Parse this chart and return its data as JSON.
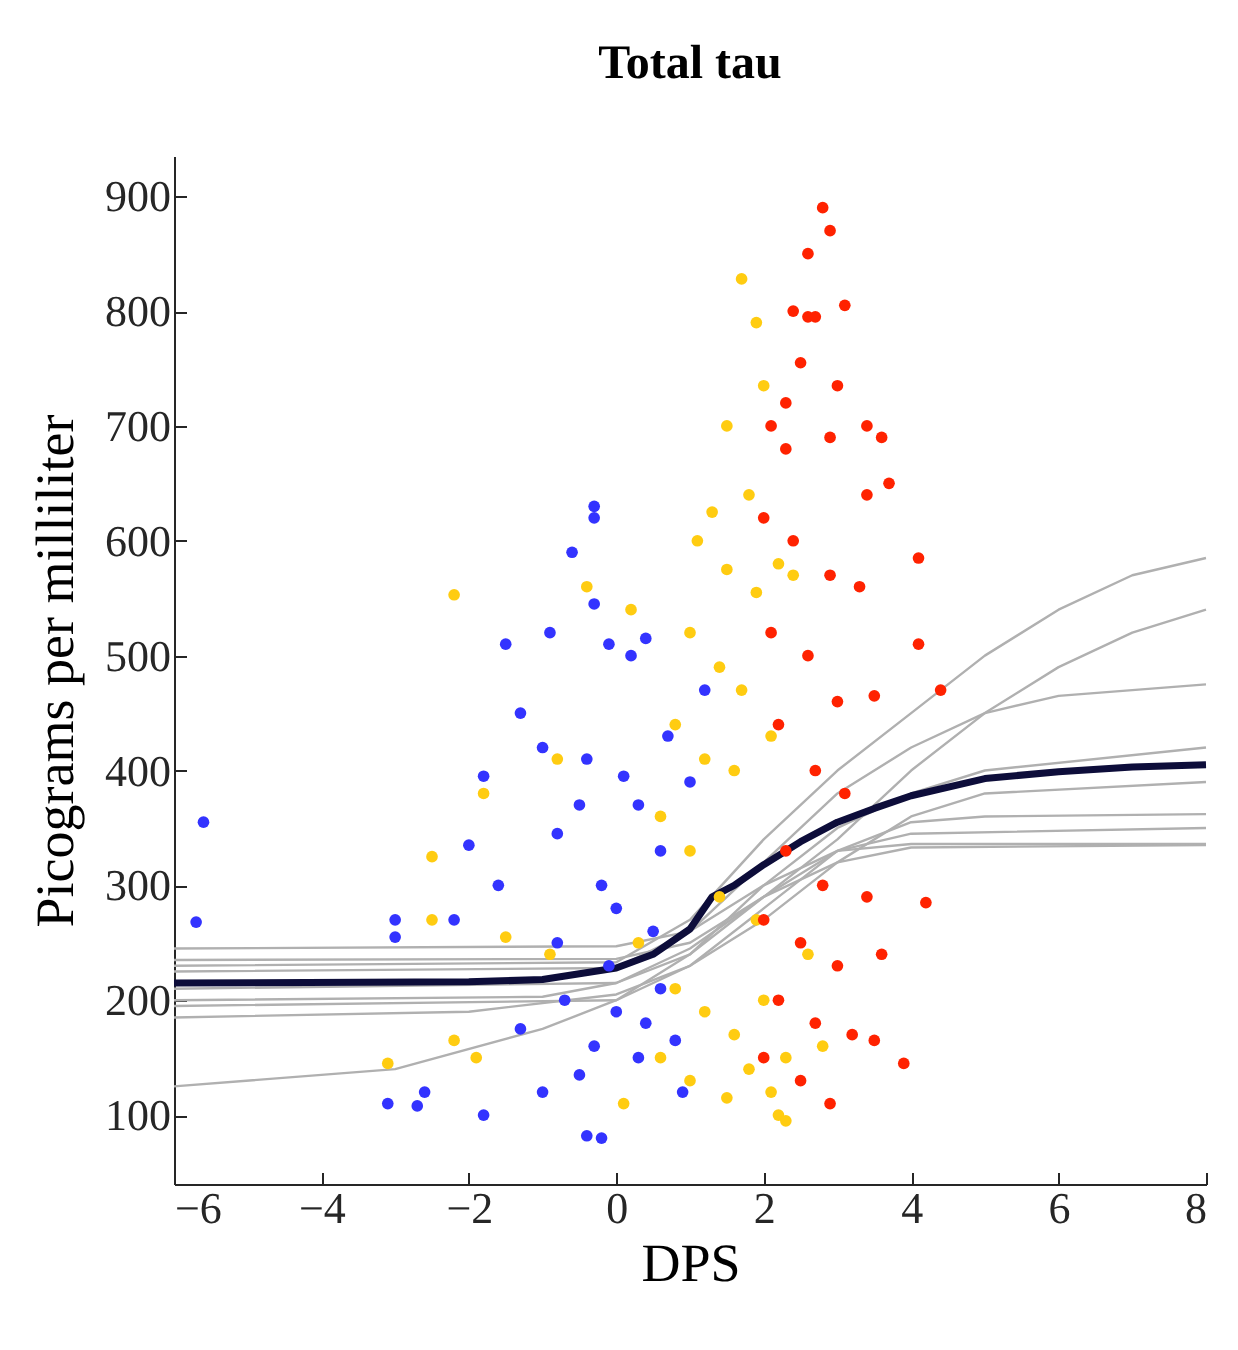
{
  "chart_data": {
    "type": "scatter",
    "title": "Total tau",
    "xlabel": "DPS",
    "ylabel": "Picograms per milliliter",
    "xlim": [
      -6,
      8
    ],
    "xticks": [
      -6,
      -4,
      -2,
      0,
      2,
      4,
      6,
      8
    ],
    "ylim": [
      40,
      935
    ],
    "yticks": [
      100,
      200,
      300,
      400,
      500,
      600,
      700,
      800,
      900
    ],
    "series": [
      {
        "marker": "circle",
        "color": "#3333ff",
        "x": [
          -5.6,
          -5.7,
          -3.0,
          -3.0,
          -2.6,
          -2.7,
          -3.1,
          -2.0,
          -1.5,
          -1.3,
          -1.8,
          -0.9,
          -0.6,
          -0.3,
          -0.3,
          -0.3,
          -0.1,
          0.2,
          0.4,
          -1.0,
          -0.4,
          0.1,
          -0.5,
          0.3,
          -1.6,
          -2.2,
          -0.8,
          0.6,
          -0.2,
          0.0,
          0.5,
          -0.8,
          -1.3,
          -0.7,
          -0.3,
          0.0,
          0.3,
          -0.5,
          0.6,
          -1.0,
          -0.4,
          -0.2,
          0.8,
          0.9,
          -1.8,
          0.7,
          1.2,
          1.0,
          -0.1,
          0.4
        ],
        "values": [
          355,
          268,
          270,
          255,
          120,
          108,
          110,
          335,
          510,
          450,
          395,
          520,
          590,
          630,
          620,
          545,
          510,
          500,
          515,
          420,
          410,
          395,
          370,
          370,
          300,
          270,
          345,
          330,
          300,
          280,
          260,
          250,
          175,
          200,
          160,
          190,
          150,
          135,
          210,
          120,
          82,
          80,
          165,
          120,
          100,
          430,
          470,
          390,
          230,
          180
        ]
      },
      {
        "marker": "circle",
        "color": "#ffcc11",
        "x": [
          -2.2,
          -1.8,
          -2.5,
          -2.5,
          -3.1,
          -2.2,
          -1.9,
          -0.8,
          -0.4,
          0.2,
          1.7,
          1.9,
          2.0,
          1.5,
          1.8,
          1.3,
          1.1,
          1.5,
          1.9,
          1.0,
          1.4,
          1.7,
          2.2,
          2.4,
          0.8,
          1.2,
          1.6,
          2.1,
          0.6,
          1.0,
          1.4,
          1.9,
          0.3,
          0.8,
          1.2,
          1.6,
          2.0,
          2.3,
          0.6,
          1.0,
          1.5,
          2.1,
          2.2,
          2.3,
          1.8,
          0.1,
          -0.9,
          -1.5,
          2.6,
          2.8
        ],
        "values": [
          553,
          380,
          325,
          270,
          145,
          165,
          150,
          410,
          560,
          540,
          828,
          790,
          735,
          700,
          640,
          625,
          600,
          575,
          555,
          520,
          490,
          470,
          580,
          570,
          440,
          410,
          400,
          430,
          360,
          330,
          290,
          270,
          250,
          210,
          190,
          170,
          200,
          150,
          150,
          130,
          115,
          120,
          100,
          95,
          140,
          110,
          240,
          255,
          240,
          160
        ]
      },
      {
        "marker": "circle",
        "color": "#ff2200",
        "x": [
          2.8,
          2.9,
          2.6,
          2.4,
          3.1,
          2.6,
          2.7,
          2.5,
          3.0,
          2.1,
          2.3,
          3.4,
          3.6,
          2.9,
          2.3,
          4.1,
          4.1,
          3.4,
          3.7,
          2.0,
          2.4,
          2.9,
          3.3,
          2.1,
          2.6,
          3.0,
          3.5,
          2.2,
          2.7,
          3.1,
          2.3,
          2.8,
          3.4,
          2.0,
          2.5,
          3.0,
          3.6,
          2.2,
          2.7,
          3.2,
          2.0,
          2.5,
          3.9,
          3.5,
          2.9,
          4.2,
          4.4
        ],
        "values": [
          890,
          870,
          850,
          800,
          805,
          795,
          795,
          755,
          735,
          700,
          720,
          700,
          690,
          690,
          680,
          585,
          510,
          640,
          650,
          620,
          600,
          570,
          560,
          520,
          500,
          460,
          465,
          440,
          400,
          380,
          330,
          300,
          290,
          270,
          250,
          230,
          240,
          200,
          180,
          170,
          150,
          130,
          145,
          165,
          110,
          285,
          470
        ]
      },
      {
        "type": "line",
        "color": "#b0b0b0",
        "x": [
          -6,
          0,
          1,
          2,
          3,
          4,
          8
        ],
        "values": [
          245,
          247,
          260,
          300,
          330,
          336,
          336
        ]
      },
      {
        "type": "line",
        "color": "#b0b0b0",
        "x": [
          -6,
          -1,
          0,
          1,
          2,
          3,
          4,
          8
        ],
        "values": [
          200,
          203,
          215,
          245,
          290,
          320,
          333,
          335
        ]
      },
      {
        "type": "line",
        "color": "#b0b0b0",
        "x": [
          -6,
          -3,
          -1,
          0,
          1,
          2,
          3,
          4,
          8
        ],
        "values": [
          125,
          140,
          175,
          200,
          240,
          290,
          330,
          345,
          350
        ]
      },
      {
        "type": "line",
        "color": "#b0b0b0",
        "x": [
          -6,
          0,
          1,
          2,
          3,
          4,
          5,
          6,
          7,
          8
        ],
        "values": [
          230,
          233,
          270,
          340,
          400,
          450,
          500,
          540,
          570,
          585
        ]
      },
      {
        "type": "line",
        "color": "#b0b0b0",
        "x": [
          -6,
          0,
          1,
          2,
          3,
          4,
          5,
          6,
          8
        ],
        "values": [
          225,
          228,
          260,
          320,
          380,
          420,
          450,
          465,
          475
        ]
      },
      {
        "type": "line",
        "color": "#b0b0b0",
        "x": [
          -6,
          0,
          1,
          2,
          3,
          4,
          5,
          8
        ],
        "values": [
          210,
          215,
          240,
          300,
          350,
          380,
          400,
          420
        ]
      },
      {
        "type": "line",
        "color": "#b0b0b0",
        "x": [
          -6,
          -2,
          0,
          1,
          2,
          3,
          4,
          5,
          8
        ],
        "values": [
          185,
          190,
          205,
          230,
          270,
          320,
          360,
          380,
          390
        ]
      },
      {
        "type": "line",
        "color": "#b0b0b0",
        "x": [
          -6,
          0,
          1,
          2,
          3,
          4,
          5,
          6,
          7,
          8
        ],
        "values": [
          235,
          236,
          250,
          290,
          340,
          400,
          450,
          490,
          520,
          540
        ]
      },
      {
        "type": "line",
        "color": "#b0b0b0",
        "x": [
          -6,
          0,
          1,
          2,
          3,
          4,
          5,
          8
        ],
        "values": [
          195,
          200,
          230,
          280,
          330,
          355,
          360,
          362
        ]
      },
      {
        "type": "line",
        "color": "#0d0d3a",
        "x": [
          -6,
          -2,
          -1,
          0,
          0.5,
          1,
          1.3,
          1.6,
          2,
          2.5,
          3,
          3.5,
          4,
          5,
          6,
          7,
          8
        ],
        "values": [
          215,
          216,
          218,
          228,
          240,
          262,
          290,
          300,
          318,
          338,
          355,
          367,
          378,
          393,
          399,
          403,
          405
        ]
      }
    ]
  }
}
